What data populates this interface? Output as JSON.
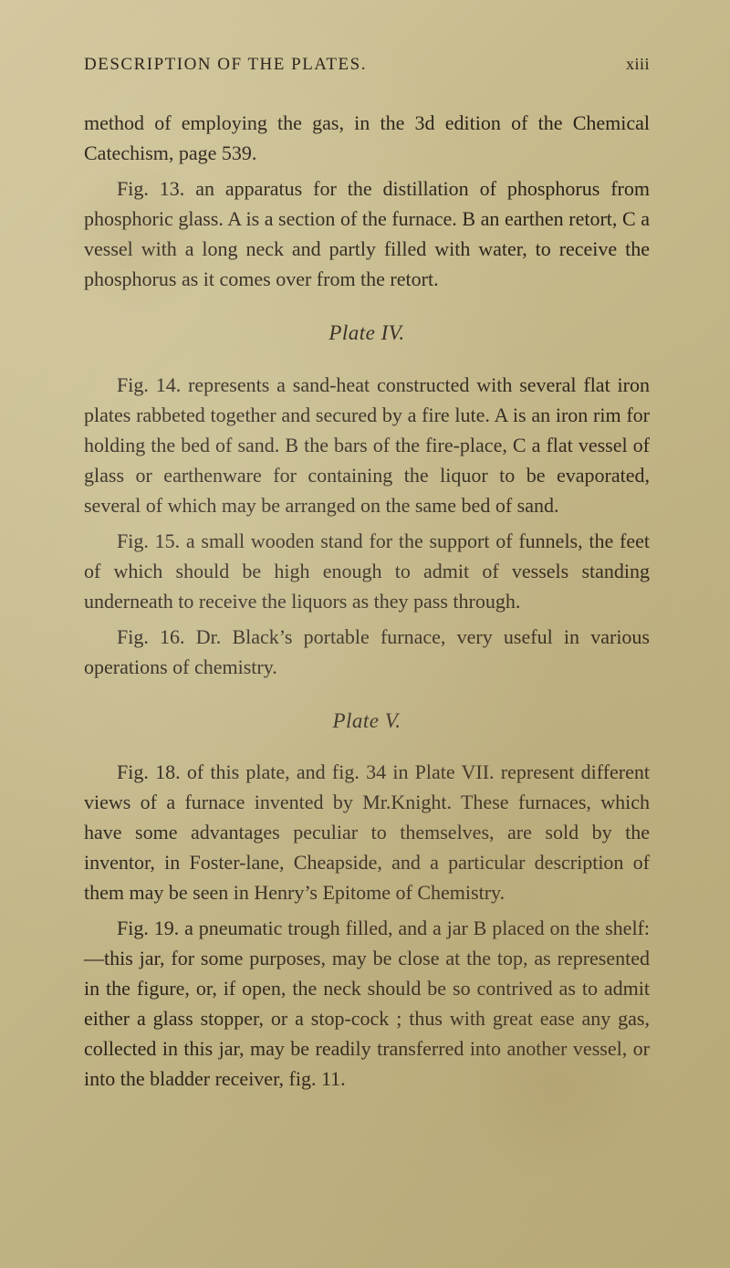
{
  "header": {
    "title": "DESCRIPTION OF THE PLATES.",
    "page_number": "xiii"
  },
  "paragraphs": {
    "p1": "method of employing the gas, in the 3d edition of the Chemical Catechism, page 539.",
    "p2": "Fig. 13. an apparatus for the distillation of phosphorus from phosphoric glass. A is a section of the furnace. B an earthen retort, C a vessel with a long neck and partly filled with water, to receive the phosphorus as it comes over from the retort."
  },
  "plate4": {
    "heading": "Plate IV.",
    "p1": "Fig. 14. represents a sand-heat constructed with several flat iron plates rabbeted together and secured by a fire lute. A is an iron rim for holding the bed of sand. B the bars of the fire-place, C a flat vessel of glass or earthenware for containing the liquor to be evaporated, several of which may be arranged on the same bed of sand.",
    "p2": "Fig. 15. a small wooden stand for the support of funnels, the feet of which should be high enough to admit of vessels standing underneath to receive the liquors as they pass through.",
    "p3": "Fig. 16. Dr. Black’s portable furnace, very useful in various operations of chemistry."
  },
  "plate5": {
    "heading": "Plate V.",
    "p1": "Fig. 18. of this plate, and fig. 34 in Plate VII. represent different views of a furnace invented by Mr.Knight. These furnaces, which have some advantages peculiar to themselves, are sold by the inventor, in Foster-lane, Cheapside, and a particular description of them may be seen in Henry’s Epitome of Chemistry.",
    "p2": "Fig. 19. a pneumatic trough filled, and a jar B placed on the shelf:—this jar, for some purposes, may be close at the top, as represented in the figure, or, if open, the neck should be so contrived as to admit either a glass stopper, or a stop-cock ; thus with great ease any gas, collected in this jar, may be readily transferred into another vessel, or into the bladder receiver, fig. 11."
  }
}
